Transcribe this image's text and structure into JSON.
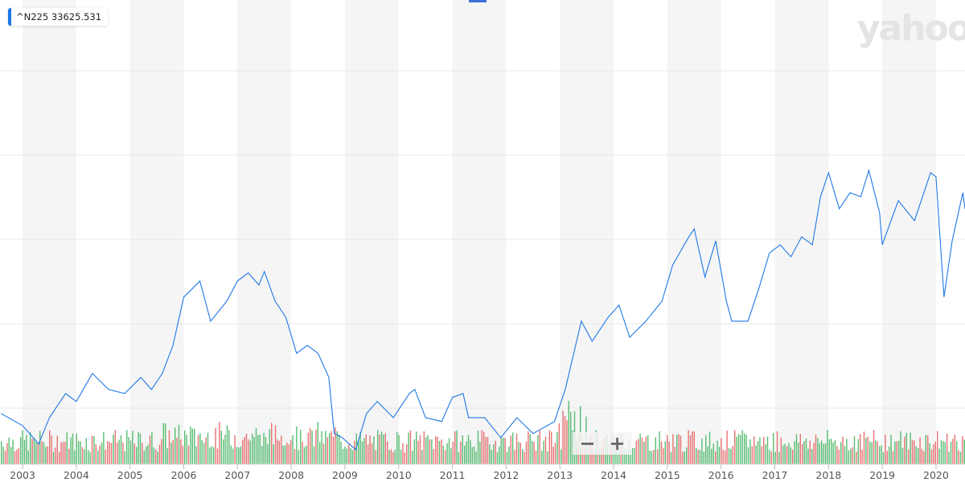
{
  "legend": {
    "symbol": "^N225",
    "value": "33625.531",
    "color": "#1e78e6"
  },
  "watermark": "yahoo",
  "zoom_controls": {
    "minus": "−",
    "plus": "+"
  },
  "colors": {
    "line": "#1e78e6",
    "volume_up": "#3cb15a",
    "volume_down": "#e35b5b",
    "band": "#f5f5f5",
    "grid": "#e8e8e8"
  },
  "chart_data": {
    "type": "line",
    "xlim": [
      2002.58,
      2020.54
    ],
    "ylim": [
      6500,
      33850
    ],
    "grid": true,
    "alternating_year_bands": true,
    "x_ticks": [
      "2003",
      "2004",
      "2005",
      "2006",
      "2007",
      "2008",
      "2009",
      "2010",
      "2011",
      "2012",
      "2013",
      "2014",
      "2015",
      "2016",
      "2017",
      "2018",
      "2019",
      "2020"
    ],
    "series": [
      {
        "name": "^N225",
        "x": [
          2002.6,
          2003.0,
          2003.3,
          2003.5,
          2003.8,
          2004.0,
          2004.3,
          2004.6,
          2004.9,
          2005.2,
          2005.4,
          2005.6,
          2005.8,
          2006.0,
          2006.3,
          2006.5,
          2006.8,
          2007.0,
          2007.2,
          2007.4,
          2007.5,
          2007.7,
          2007.9,
          2008.1,
          2008.3,
          2008.5,
          2008.7,
          2008.8,
          2008.95,
          2009.2,
          2009.4,
          2009.6,
          2009.9,
          2010.2,
          2010.3,
          2010.5,
          2010.8,
          2011.0,
          2011.2,
          2011.3,
          2011.6,
          2011.9,
          2012.2,
          2012.5,
          2012.9,
          2013.1,
          2013.4,
          2013.6,
          2013.9,
          2014.1,
          2014.3,
          2014.6,
          2014.9,
          2015.1,
          2015.4,
          2015.5,
          2015.7,
          2015.9,
          2016.1,
          2016.2,
          2016.5,
          2016.7,
          2016.9,
          2017.1,
          2017.3,
          2017.5,
          2017.7,
          2017.85,
          2018.0,
          2018.2,
          2018.4,
          2018.6,
          2018.75,
          2018.95,
          2019.0,
          2019.3,
          2019.6,
          2019.9,
          2020.0,
          2020.15,
          2020.3,
          2020.5,
          2020.54
        ],
        "values": [
          9490,
          8780,
          7700,
          9250,
          10670,
          10200,
          11850,
          10910,
          10670,
          11620,
          10910,
          11850,
          13510,
          16350,
          17300,
          14930,
          16110,
          17300,
          17770,
          17060,
          17860,
          16110,
          15160,
          13040,
          13510,
          13040,
          11620,
          8310,
          8070,
          7360,
          9490,
          10200,
          9250,
          10670,
          10910,
          9250,
          9020,
          10440,
          10670,
          9250,
          9250,
          8070,
          9250,
          8310,
          9020,
          10910,
          14930,
          13750,
          15160,
          15880,
          13980,
          14930,
          16110,
          18240,
          19900,
          20370,
          17530,
          19660,
          16110,
          14930,
          14930,
          16820,
          18950,
          19430,
          18720,
          19900,
          19430,
          22260,
          23680,
          21550,
          22500,
          22260,
          23820,
          21320,
          19430,
          22030,
          20850,
          23680,
          23440,
          16350,
          19660,
          22500,
          21550
        ]
      }
    ]
  }
}
